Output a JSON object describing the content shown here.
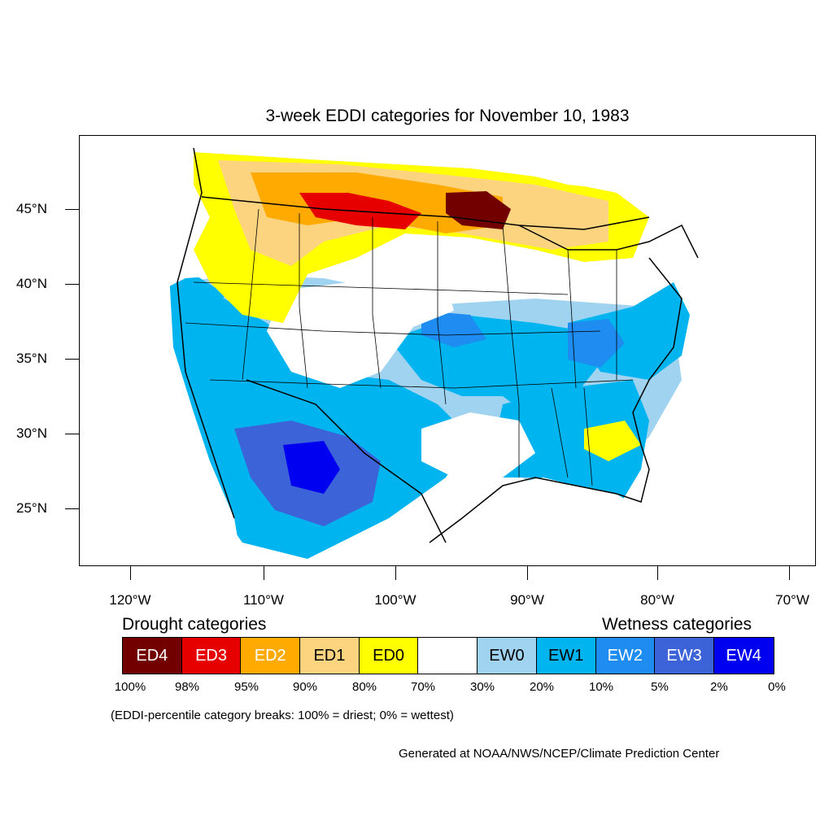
{
  "title": "3-week EDDI categories for November 10, 1983",
  "map": {
    "lat_labels": [
      "45°N",
      "40°N",
      "35°N",
      "30°N",
      "25°N"
    ],
    "lon_labels": [
      "120°W",
      "110°W",
      "100°W",
      "90°W",
      "80°W",
      "70°W"
    ]
  },
  "legend": {
    "drought_heading": "Drought categories",
    "wetness_heading": "Wetness categories",
    "categories": [
      {
        "label": "ED4",
        "color": "#730000"
      },
      {
        "label": "ED3",
        "color": "#E60000"
      },
      {
        "label": "ED2",
        "color": "#FFAA00"
      },
      {
        "label": "ED1",
        "color": "#FCD37F"
      },
      {
        "label": "ED0",
        "color": "#FFFF00"
      },
      {
        "label": "",
        "color": "#FFFFFF"
      },
      {
        "label": "EW0",
        "color": "#9FD3F0"
      },
      {
        "label": "EW1",
        "color": "#00B4F0"
      },
      {
        "label": "EW2",
        "color": "#1E8CF0"
      },
      {
        "label": "EW3",
        "color": "#3C64D8"
      },
      {
        "label": "EW4",
        "color": "#0000F0"
      }
    ],
    "breaks": [
      "100%",
      "98%",
      "95%",
      "90%",
      "80%",
      "70%",
      "30%",
      "20%",
      "10%",
      "5%",
      "2%",
      "0%"
    ]
  },
  "note": "(EDDI-percentile category breaks: 100% = driest; 0% = wettest)",
  "credit": "Generated at NOAA/NWS/NCEP/Climate Prediction Center"
}
